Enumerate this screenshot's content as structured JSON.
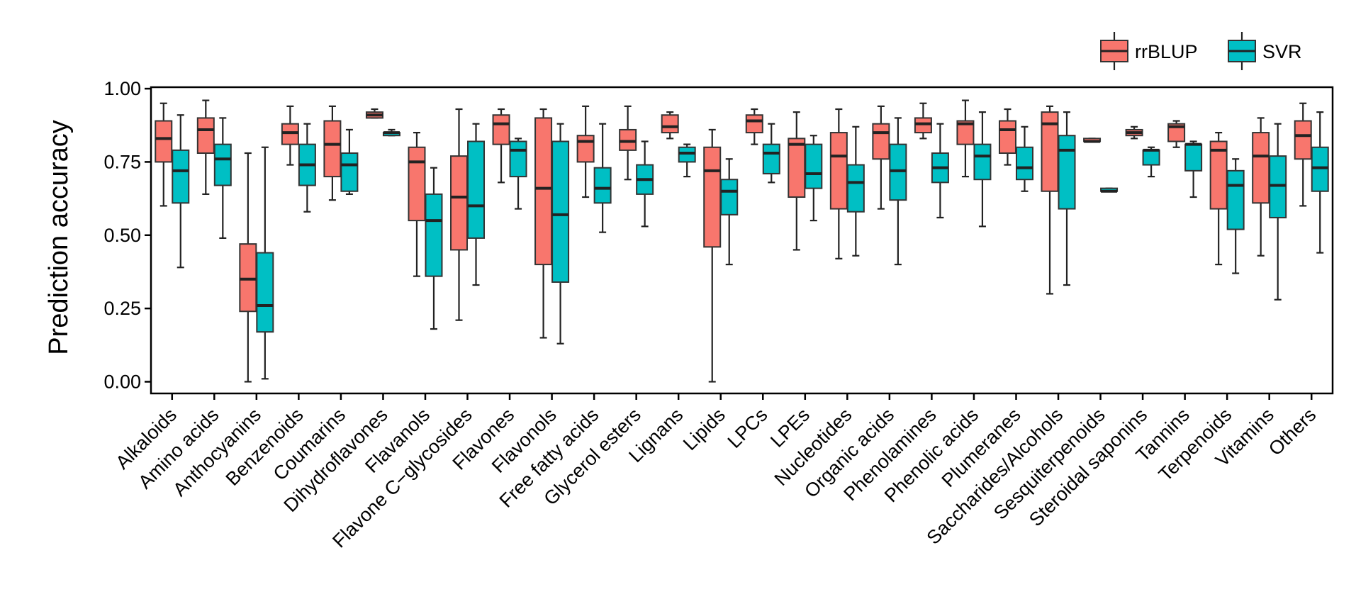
{
  "chart_data": {
    "type": "boxplot",
    "ylabel": "Prediction accuracy",
    "xlabel": "",
    "ylim": [
      -0.04,
      1.005
    ],
    "yticks": [
      0.0,
      0.25,
      0.5,
      0.75,
      1.0
    ],
    "ytick_labels": [
      "0.00",
      "0.25",
      "0.50",
      "0.75",
      "1.00"
    ],
    "grid": false,
    "legend_position": "top-right",
    "categories": [
      "Alkaloids",
      "Amino acids",
      "Anthocyanins",
      "Benzenoids",
      "Coumarins",
      "Dihydroflavones",
      "Flavanols",
      "Flavone C−glycosides",
      "Flavones",
      "Flavonols",
      "Free fatty acids",
      "Glycerol esters",
      "Lignans",
      "Lipids",
      "LPCs",
      "LPEs",
      "Nucleotides",
      "Organic acids",
      "Phenolamines",
      "Phenolic acids",
      "Plumeranes",
      "Saccharides/Alcohols",
      "Sesquiterpenoids",
      "Steroidal saponins",
      "Tannins",
      "Terpenoids",
      "Vitamins",
      "Others"
    ],
    "series": [
      {
        "name": "rrBLUP",
        "color": "#F8766D",
        "boxes": [
          {
            "min": 0.6,
            "q1": 0.75,
            "median": 0.83,
            "q3": 0.89,
            "max": 0.95
          },
          {
            "min": 0.64,
            "q1": 0.78,
            "median": 0.86,
            "q3": 0.9,
            "max": 0.96
          },
          {
            "min": 0.0,
            "q1": 0.24,
            "median": 0.35,
            "q3": 0.47,
            "max": 0.78
          },
          {
            "min": 0.74,
            "q1": 0.81,
            "median": 0.85,
            "q3": 0.88,
            "max": 0.94
          },
          {
            "min": 0.62,
            "q1": 0.7,
            "median": 0.81,
            "q3": 0.89,
            "max": 0.94
          },
          {
            "min": 0.9,
            "q1": 0.9,
            "median": 0.91,
            "q3": 0.92,
            "max": 0.93
          },
          {
            "min": 0.36,
            "q1": 0.55,
            "median": 0.75,
            "q3": 0.8,
            "max": 0.85
          },
          {
            "min": 0.21,
            "q1": 0.45,
            "median": 0.63,
            "q3": 0.77,
            "max": 0.93
          },
          {
            "min": 0.68,
            "q1": 0.81,
            "median": 0.88,
            "q3": 0.91,
            "max": 0.93
          },
          {
            "min": 0.15,
            "q1": 0.4,
            "median": 0.66,
            "q3": 0.9,
            "max": 0.93
          },
          {
            "min": 0.63,
            "q1": 0.75,
            "median": 0.82,
            "q3": 0.84,
            "max": 0.94
          },
          {
            "min": 0.69,
            "q1": 0.79,
            "median": 0.82,
            "q3": 0.86,
            "max": 0.94
          },
          {
            "min": 0.83,
            "q1": 0.85,
            "median": 0.87,
            "q3": 0.91,
            "max": 0.92
          },
          {
            "min": 0.0,
            "q1": 0.46,
            "median": 0.72,
            "q3": 0.8,
            "max": 0.86
          },
          {
            "min": 0.81,
            "q1": 0.85,
            "median": 0.89,
            "q3": 0.91,
            "max": 0.93
          },
          {
            "min": 0.45,
            "q1": 0.63,
            "median": 0.81,
            "q3": 0.83,
            "max": 0.92
          },
          {
            "min": 0.42,
            "q1": 0.59,
            "median": 0.77,
            "q3": 0.85,
            "max": 0.93
          },
          {
            "min": 0.59,
            "q1": 0.76,
            "median": 0.85,
            "q3": 0.88,
            "max": 0.94
          },
          {
            "min": 0.83,
            "q1": 0.85,
            "median": 0.88,
            "q3": 0.9,
            "max": 0.95
          },
          {
            "min": 0.7,
            "q1": 0.81,
            "median": 0.88,
            "q3": 0.89,
            "max": 0.96
          },
          {
            "min": 0.74,
            "q1": 0.78,
            "median": 0.86,
            "q3": 0.89,
            "max": 0.93
          },
          {
            "min": 0.3,
            "q1": 0.65,
            "median": 0.88,
            "q3": 0.92,
            "max": 0.94
          },
          {
            "min": 0.82,
            "q1": 0.82,
            "median": 0.82,
            "q3": 0.83,
            "max": 0.83
          },
          {
            "min": 0.83,
            "q1": 0.84,
            "median": 0.85,
            "q3": 0.86,
            "max": 0.87
          },
          {
            "min": 0.8,
            "q1": 0.82,
            "median": 0.87,
            "q3": 0.88,
            "max": 0.89
          },
          {
            "min": 0.4,
            "q1": 0.59,
            "median": 0.79,
            "q3": 0.82,
            "max": 0.85
          },
          {
            "min": 0.43,
            "q1": 0.61,
            "median": 0.77,
            "q3": 0.85,
            "max": 0.9
          },
          {
            "min": 0.6,
            "q1": 0.76,
            "median": 0.84,
            "q3": 0.89,
            "max": 0.95
          }
        ]
      },
      {
        "name": "SVR",
        "color": "#00BFC4",
        "boxes": [
          {
            "min": 0.39,
            "q1": 0.61,
            "median": 0.72,
            "q3": 0.79,
            "max": 0.91
          },
          {
            "min": 0.49,
            "q1": 0.67,
            "median": 0.76,
            "q3": 0.81,
            "max": 0.9
          },
          {
            "min": 0.01,
            "q1": 0.17,
            "median": 0.26,
            "q3": 0.44,
            "max": 0.8
          },
          {
            "min": 0.58,
            "q1": 0.67,
            "median": 0.74,
            "q3": 0.81,
            "max": 0.88
          },
          {
            "min": 0.64,
            "q1": 0.65,
            "median": 0.74,
            "q3": 0.78,
            "max": 0.86
          },
          {
            "min": 0.84,
            "q1": 0.84,
            "median": 0.85,
            "q3": 0.85,
            "max": 0.86
          },
          {
            "min": 0.18,
            "q1": 0.36,
            "median": 0.55,
            "q3": 0.64,
            "max": 0.73
          },
          {
            "min": 0.33,
            "q1": 0.49,
            "median": 0.6,
            "q3": 0.82,
            "max": 0.88
          },
          {
            "min": 0.59,
            "q1": 0.7,
            "median": 0.79,
            "q3": 0.82,
            "max": 0.83
          },
          {
            "min": 0.13,
            "q1": 0.34,
            "median": 0.57,
            "q3": 0.82,
            "max": 0.88
          },
          {
            "min": 0.51,
            "q1": 0.61,
            "median": 0.66,
            "q3": 0.73,
            "max": 0.88
          },
          {
            "min": 0.53,
            "q1": 0.64,
            "median": 0.69,
            "q3": 0.74,
            "max": 0.82
          },
          {
            "min": 0.7,
            "q1": 0.75,
            "median": 0.78,
            "q3": 0.8,
            "max": 0.81
          },
          {
            "min": 0.4,
            "q1": 0.57,
            "median": 0.65,
            "q3": 0.69,
            "max": 0.76
          },
          {
            "min": 0.68,
            "q1": 0.71,
            "median": 0.78,
            "q3": 0.81,
            "max": 0.88
          },
          {
            "min": 0.55,
            "q1": 0.66,
            "median": 0.71,
            "q3": 0.81,
            "max": 0.84
          },
          {
            "min": 0.43,
            "q1": 0.58,
            "median": 0.68,
            "q3": 0.74,
            "max": 0.87
          },
          {
            "min": 0.4,
            "q1": 0.62,
            "median": 0.72,
            "q3": 0.81,
            "max": 0.9
          },
          {
            "min": 0.56,
            "q1": 0.68,
            "median": 0.73,
            "q3": 0.78,
            "max": 0.88
          },
          {
            "min": 0.53,
            "q1": 0.69,
            "median": 0.77,
            "q3": 0.81,
            "max": 0.92
          },
          {
            "min": 0.65,
            "q1": 0.69,
            "median": 0.73,
            "q3": 0.8,
            "max": 0.87
          },
          {
            "min": 0.33,
            "q1": 0.59,
            "median": 0.79,
            "q3": 0.84,
            "max": 0.92
          },
          {
            "min": 0.65,
            "q1": 0.65,
            "median": 0.65,
            "q3": 0.66,
            "max": 0.66
          },
          {
            "min": 0.7,
            "q1": 0.74,
            "median": 0.79,
            "q3": 0.79,
            "max": 0.8
          },
          {
            "min": 0.63,
            "q1": 0.72,
            "median": 0.81,
            "q3": 0.81,
            "max": 0.82
          },
          {
            "min": 0.37,
            "q1": 0.52,
            "median": 0.67,
            "q3": 0.72,
            "max": 0.76
          },
          {
            "min": 0.28,
            "q1": 0.56,
            "median": 0.67,
            "q3": 0.77,
            "max": 0.88
          },
          {
            "min": 0.44,
            "q1": 0.65,
            "median": 0.73,
            "q3": 0.8,
            "max": 0.92
          }
        ]
      }
    ]
  }
}
